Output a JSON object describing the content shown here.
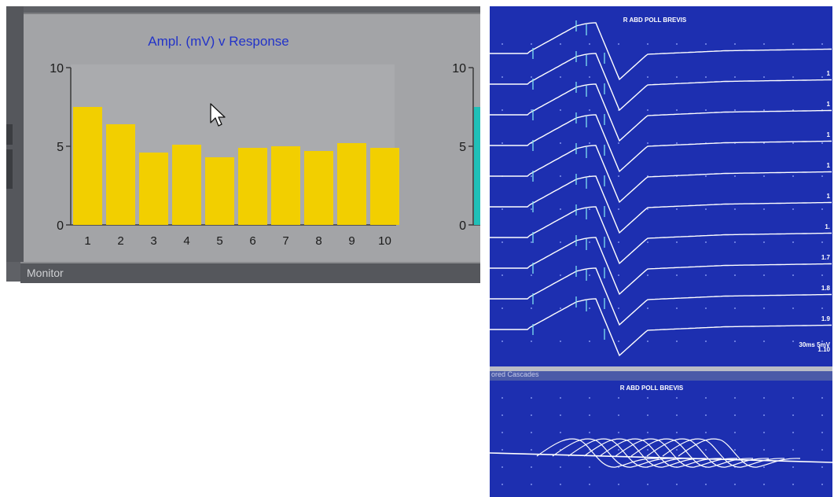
{
  "left_window": {
    "monitor_label": "Monitor",
    "secondary_axis_ticks": [
      "10",
      "5",
      "0"
    ]
  },
  "chart_data": {
    "type": "bar",
    "title": "Ampl. (mV) v Response",
    "categories": [
      "1",
      "2",
      "3",
      "4",
      "5",
      "6",
      "7",
      "8",
      "9",
      "10"
    ],
    "values": [
      7.5,
      6.4,
      4.6,
      5.1,
      4.3,
      4.9,
      5.0,
      4.7,
      5.2,
      4.9
    ],
    "ylim": [
      0,
      10
    ],
    "yticks": [
      "10",
      "5",
      "0"
    ],
    "xlabel": "",
    "ylabel": "",
    "bar_color": "#f2cf00",
    "background_color": "#a3a4a7",
    "grid": false
  },
  "right_window": {
    "top_title": "R ABD POLL BREVIS",
    "trace_labels": [
      "1",
      "1",
      "1",
      "1",
      "1",
      "1.",
      "1.7",
      "1.8",
      "1.9",
      "1.10"
    ],
    "scale_label": "30ms 5mV",
    "bottom_section_label": "ored Cascades",
    "bottom_title": "R ABD POLL BREVIS",
    "background_color": "#1d2fb0",
    "trace_color": "#ffffff",
    "marker_color": "#7fe0f0"
  }
}
